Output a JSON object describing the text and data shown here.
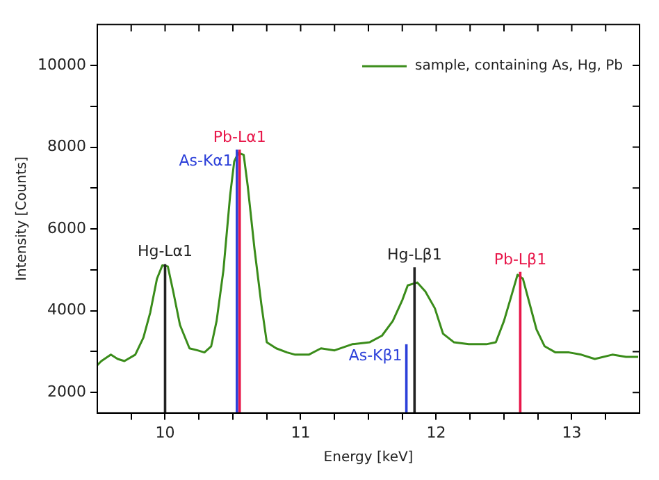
{
  "chart_data": {
    "type": "line",
    "xlabel": "Energy [keV]",
    "ylabel": "Intensity [Counts]",
    "xlim": [
      9.5,
      13.5
    ],
    "ylim": [
      1500,
      11000
    ],
    "xticks": [
      {
        "value": 9.75,
        "label": null
      },
      10,
      {
        "value": 10.25,
        "label": null
      },
      {
        "value": 10.5,
        "label": null
      },
      {
        "value": 10.75,
        "label": null
      },
      11,
      {
        "value": 11.25,
        "label": null
      },
      {
        "value": 11.5,
        "label": null
      },
      {
        "value": 11.75,
        "label": null
      },
      12,
      {
        "value": 12.25,
        "label": null
      },
      {
        "value": 12.5,
        "label": null
      },
      {
        "value": 12.75,
        "label": null
      },
      13,
      {
        "value": 13.25,
        "label": null
      }
    ],
    "yticks": [
      2000,
      {
        "value": 3000,
        "label": null
      },
      4000,
      {
        "value": 5000,
        "label": null
      },
      6000,
      {
        "value": 7000,
        "label": null
      },
      8000,
      {
        "value": 9000,
        "label": null
      },
      10000
    ],
    "grid": false,
    "legend": "top right",
    "marker": "none",
    "line_style": "solid",
    "series": [
      {
        "name": "sample, containing As, Hg, Pb",
        "color": "#3a8c1a",
        "x": [
          9.5,
          9.53,
          9.6,
          9.65,
          9.7,
          9.78,
          9.84,
          9.89,
          9.94,
          9.98,
          10.02,
          10.06,
          10.11,
          10.18,
          10.24,
          10.29,
          10.34,
          10.38,
          10.43,
          10.48,
          10.51,
          10.54,
          10.58,
          10.61,
          10.66,
          10.71,
          10.75,
          10.82,
          10.9,
          10.96,
          11.06,
          11.15,
          11.25,
          11.38,
          11.51,
          11.6,
          11.68,
          11.75,
          11.79,
          11.86,
          11.92,
          11.99,
          12.05,
          12.13,
          12.24,
          12.37,
          12.44,
          12.5,
          12.55,
          12.6,
          12.64,
          12.69,
          12.74,
          12.8,
          12.88,
          12.98,
          13.07,
          13.17,
          13.3,
          13.4,
          13.49
        ],
        "values": [
          2670,
          2770,
          2925,
          2820,
          2770,
          2925,
          3340,
          3950,
          4780,
          5110,
          5085,
          4470,
          3650,
          3080,
          3030,
          2980,
          3130,
          3750,
          4980,
          6830,
          7650,
          7860,
          7810,
          7040,
          5500,
          4160,
          3230,
          3080,
          2980,
          2925,
          2925,
          3080,
          3030,
          3180,
          3230,
          3390,
          3750,
          4260,
          4620,
          4690,
          4470,
          4060,
          3440,
          3230,
          3180,
          3180,
          3230,
          3750,
          4310,
          4880,
          4780,
          4160,
          3540,
          3130,
          2980,
          2980,
          2925,
          2820,
          2925,
          2870,
          2870
        ]
      },
      {
        "name": "Hg-Lα1",
        "color": "#222222",
        "x": [
          10.0,
          10.0
        ],
        "values": [
          1500,
          5140
        ]
      },
      {
        "name": "As-Kα1",
        "color": "#2b3fd9",
        "x": [
          10.53,
          10.53
        ],
        "values": [
          1500,
          7940
        ]
      },
      {
        "name": "Pb-Lα1",
        "color": "#e8174a",
        "x": [
          10.55,
          10.55
        ],
        "values": [
          1500,
          7940
        ]
      },
      {
        "name": "As-Kβ1",
        "color": "#2b3fd9",
        "x": [
          11.78,
          11.78
        ],
        "values": [
          1500,
          3180
        ]
      },
      {
        "name": "Hg-Lβ1",
        "color": "#222222",
        "x": [
          11.84,
          11.84
        ],
        "values": [
          1500,
          5060
        ]
      },
      {
        "name": "Pb-Lβ1",
        "color": "#e8174a",
        "x": [
          12.62,
          12.62
        ],
        "values": [
          1500,
          4950
        ]
      }
    ]
  }
}
